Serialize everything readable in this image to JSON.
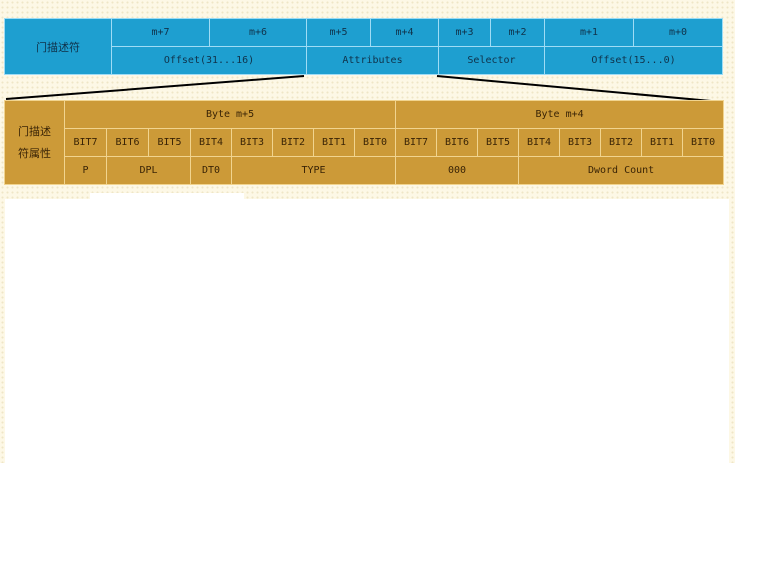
{
  "gate_descriptor": {
    "label": "门描述符",
    "bytes": [
      "m+7",
      "m+6",
      "m+5",
      "m+4",
      "m+3",
      "m+2",
      "m+1",
      "m+0"
    ],
    "fields": [
      "Offset(31...16)",
      "Attributes",
      "Selector",
      "Offset(15...0)"
    ]
  },
  "attributes": {
    "label_line1": "门描述",
    "label_line2": "符属性",
    "byte_headers": [
      "Byte m+5",
      "Byte m+4"
    ],
    "bits_high": [
      "BIT7",
      "BIT6",
      "BIT5",
      "BIT4",
      "BIT3",
      "BIT2",
      "BIT1",
      "BIT0"
    ],
    "bits_low": [
      "BIT7",
      "BIT6",
      "BIT5",
      "BIT4",
      "BIT3",
      "BIT2",
      "BIT1",
      "BIT0"
    ],
    "fields": [
      "P",
      "DPL",
      "DT0",
      "TYPE",
      "000",
      "Dword Count"
    ]
  },
  "colors": {
    "gate_fill": "#1e9fd0",
    "attr_fill": "#cc9a38",
    "background": "#fdf8e6"
  }
}
